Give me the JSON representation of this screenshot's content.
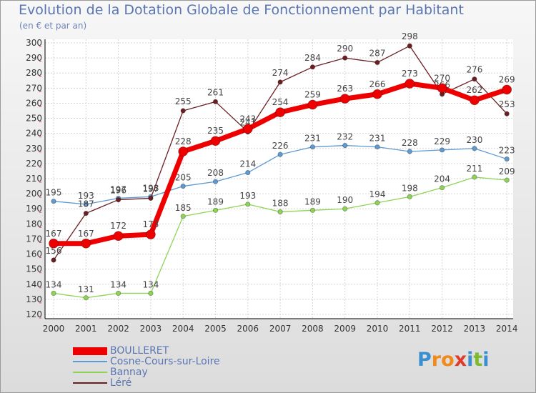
{
  "header": {
    "title": "Evolution de la Dotation Globale de Fonctionnement par Habitant",
    "subtitle": "(en € et par an)"
  },
  "logo": {
    "letters": [
      "P",
      "r",
      "o",
      "x",
      "i",
      "t",
      "i"
    ],
    "colors": [
      "#3a8fd1",
      "#f08a1c",
      "#f08a1c",
      "#e03a2a",
      "#3a8fd1",
      "#7dbb2c",
      "#3a8fd1"
    ]
  },
  "chart_data": {
    "type": "line",
    "title": "Evolution de la Dotation Globale de Fonctionnement par Habitant",
    "subtitle": "(en € et par an)",
    "xlabel": "",
    "ylabel": "",
    "ylim": [
      120,
      300
    ],
    "yticks": [
      120,
      130,
      140,
      150,
      160,
      170,
      180,
      190,
      200,
      210,
      220,
      230,
      240,
      250,
      260,
      270,
      280,
      290,
      300
    ],
    "x": [
      "2000",
      "2001",
      "2002",
      "2003",
      "2004",
      "2005",
      "2006",
      "2007",
      "2008",
      "2009",
      "2010",
      "2011",
      "2012",
      "2013",
      "2014"
    ],
    "grid": true,
    "legend_position": "bottom-left",
    "series": [
      {
        "name": "Bannay",
        "color": "#8fd356",
        "values": [
          134,
          131,
          134,
          134,
          185,
          189,
          193,
          188,
          189,
          190,
          194,
          198,
          204,
          211,
          209
        ]
      },
      {
        "name": "Cosne-Cours-sur-Loire",
        "color": "#5f9ad1",
        "values": [
          195,
          193,
          197,
          198,
          205,
          208,
          214,
          226,
          231,
          232,
          231,
          228,
          229,
          230,
          223
        ]
      },
      {
        "name": "Léré",
        "color": "#6b1f22",
        "values": [
          156,
          187,
          196,
          197,
          255,
          261,
          241,
          274,
          284,
          290,
          287,
          298,
          266,
          276,
          253
        ]
      },
      {
        "name": "BOULLERET",
        "color": "#ee0000",
        "values": [
          167,
          167,
          172,
          173,
          228,
          235,
          243,
          254,
          259,
          263,
          266,
          273,
          270,
          262,
          269
        ]
      }
    ],
    "point_labels": {
      "Bannay": [
        "134",
        "131",
        "134",
        "134",
        "185",
        "189",
        "193",
        "188",
        "189",
        "190",
        "194",
        "198",
        "204",
        "211",
        "209"
      ],
      "Cosne-Cours-sur-Loire": [
        "195",
        "193",
        "197",
        "198",
        "205",
        "208",
        "214",
        "226",
        "231",
        "232",
        "231",
        "228",
        "229",
        "230",
        "223"
      ],
      "Léré": [
        "156",
        "187",
        "196",
        "197",
        "255",
        "261",
        "241",
        "274",
        "284",
        "290",
        "287",
        "298",
        "266",
        "276",
        "253"
      ],
      "BOULLERET": [
        "167",
        "167",
        "172",
        "173",
        "228",
        "235",
        "243",
        "254",
        "259",
        "263",
        "266",
        "273",
        "270",
        "262",
        "269"
      ]
    },
    "legend_order": [
      "BOULLERET",
      "Cosne-Cours-sur-Loire",
      "Bannay",
      "Léré"
    ]
  }
}
